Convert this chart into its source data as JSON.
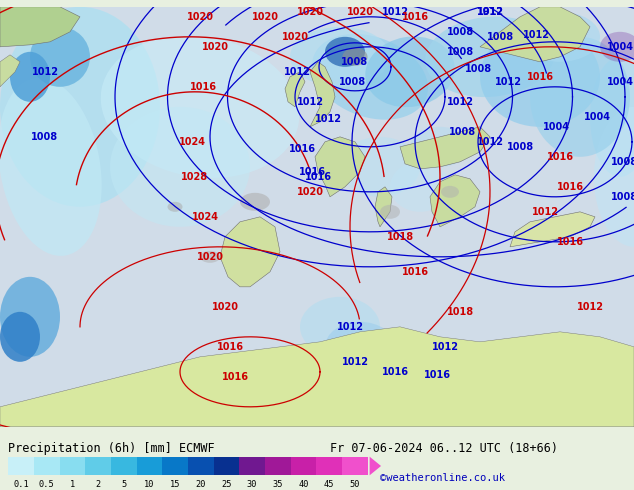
{
  "title_left": "Precipitation (6h) [mm] ECMWF",
  "title_right": "Fr 07-06-2024 06..12 UTC (18+66)",
  "credit": "©weatheronline.co.uk",
  "colorbar_labels": [
    "0.1",
    "0.5",
    "1",
    "2",
    "5",
    "10",
    "15",
    "20",
    "25",
    "30",
    "35",
    "40",
    "45",
    "50"
  ],
  "colorbar_colors": [
    "#c8f0f8",
    "#a8e8f5",
    "#88ddf0",
    "#60cce8",
    "#38b8e0",
    "#189cd8",
    "#0878c8",
    "#0850b0",
    "#083090",
    "#701890",
    "#a01898",
    "#c820a8",
    "#e030b8",
    "#f050cc"
  ],
  "map_ocean_color": "#d0e8f0",
  "map_land_color": "#c8dca0",
  "map_bg_color": "#d8eaf8",
  "precip_light": "#b8e8f8",
  "precip_medium": "#80c8e8",
  "precip_dark": "#3090c0",
  "text_color": "#000000",
  "credit_color": "#0000bb",
  "isobar_blue": "#0000cc",
  "isobar_red": "#cc0000",
  "bg_color": "#e8f0e0",
  "label_fontsize": 7,
  "title_fontsize": 8.5
}
